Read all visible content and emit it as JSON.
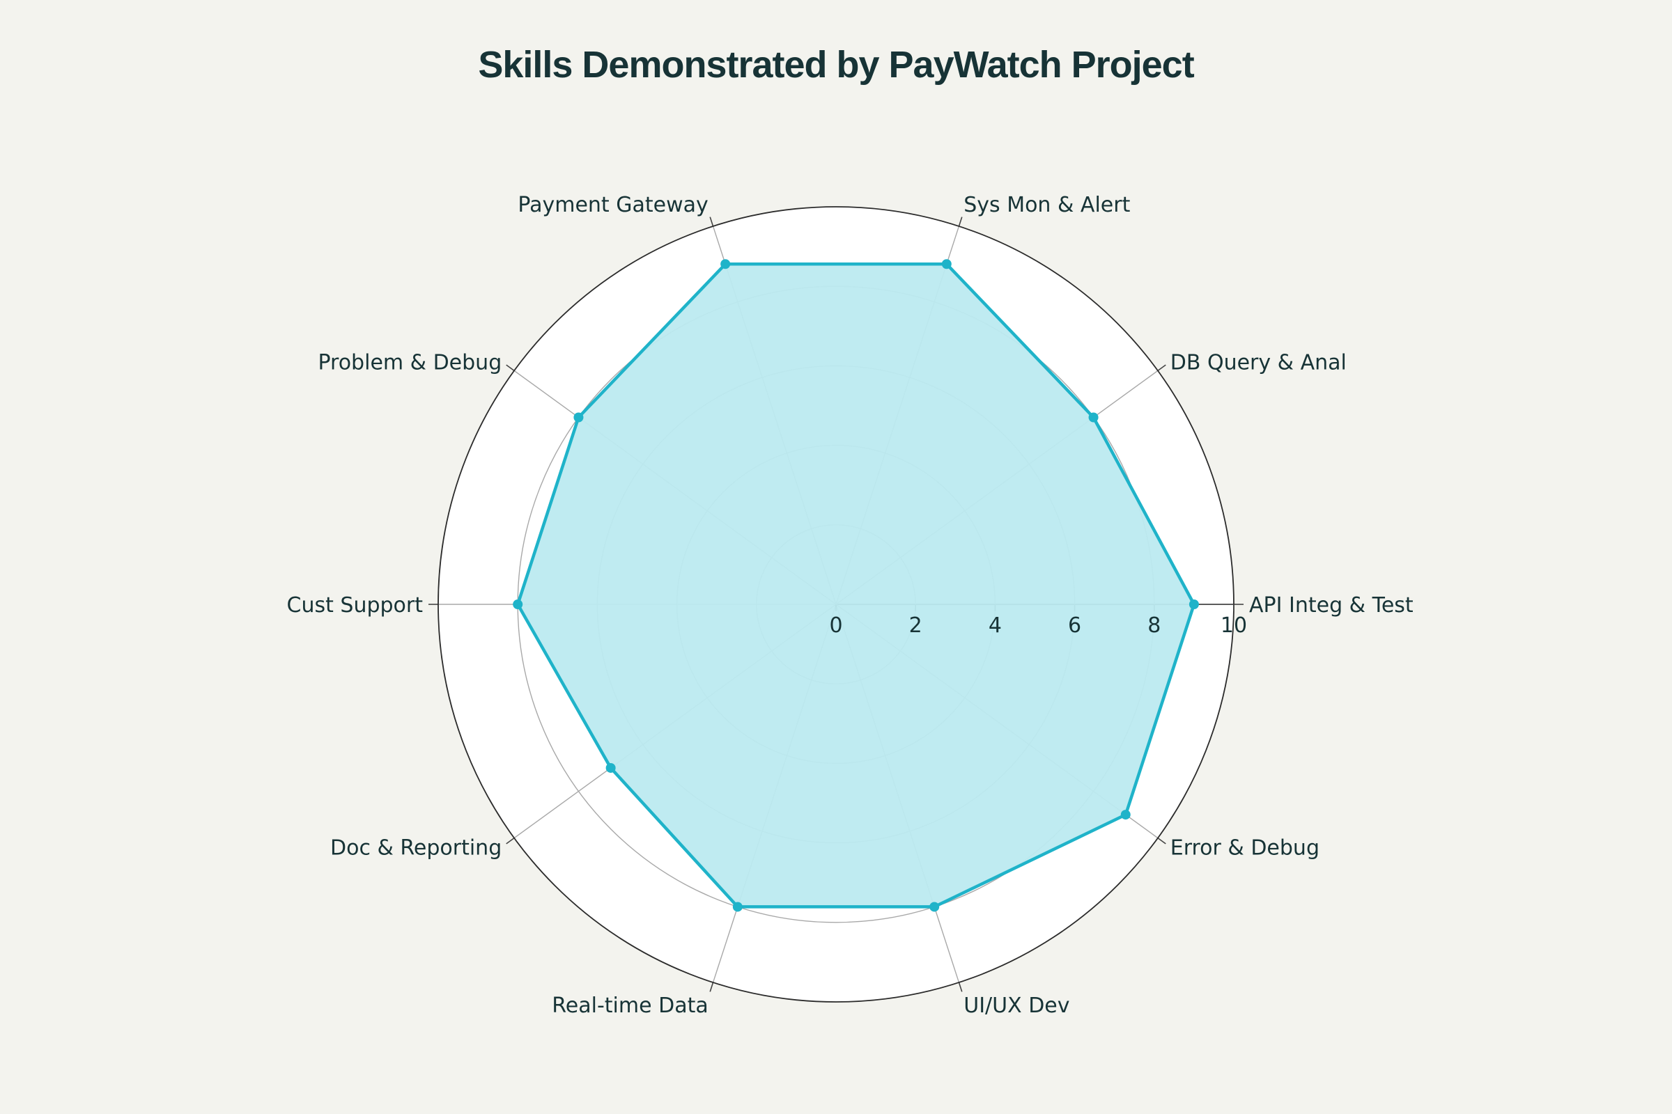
{
  "chart_data": {
    "type": "radar",
    "title": "Skills Demonstrated by PayWatch Project",
    "categories": [
      "API Integ & Test",
      "DB Query & Anal",
      "Sys Mon & Alert",
      "Payment Gateway",
      "Problem & Debug",
      "Cust Support",
      "Doc & Reporting",
      "Real-time Data",
      "UI/UX Dev",
      "Error & Debug"
    ],
    "series": [
      {
        "values": [
          9,
          8,
          9,
          9,
          8,
          8,
          7,
          8,
          8,
          9
        ]
      }
    ],
    "radial_range": [
      0,
      10
    ],
    "radial_ticks": [
      "0",
      "2",
      "4",
      "6",
      "8",
      "10"
    ],
    "grid": true,
    "legend": "none",
    "colors": {
      "line": "#1FB3C9",
      "fill": "#BCEAF0",
      "plot_background": "#FFFFFF",
      "page_background": "#F3F3EE",
      "grid": "#A8A8A8",
      "outer_ring": "#2B2B2B",
      "text": "#173336"
    }
  }
}
